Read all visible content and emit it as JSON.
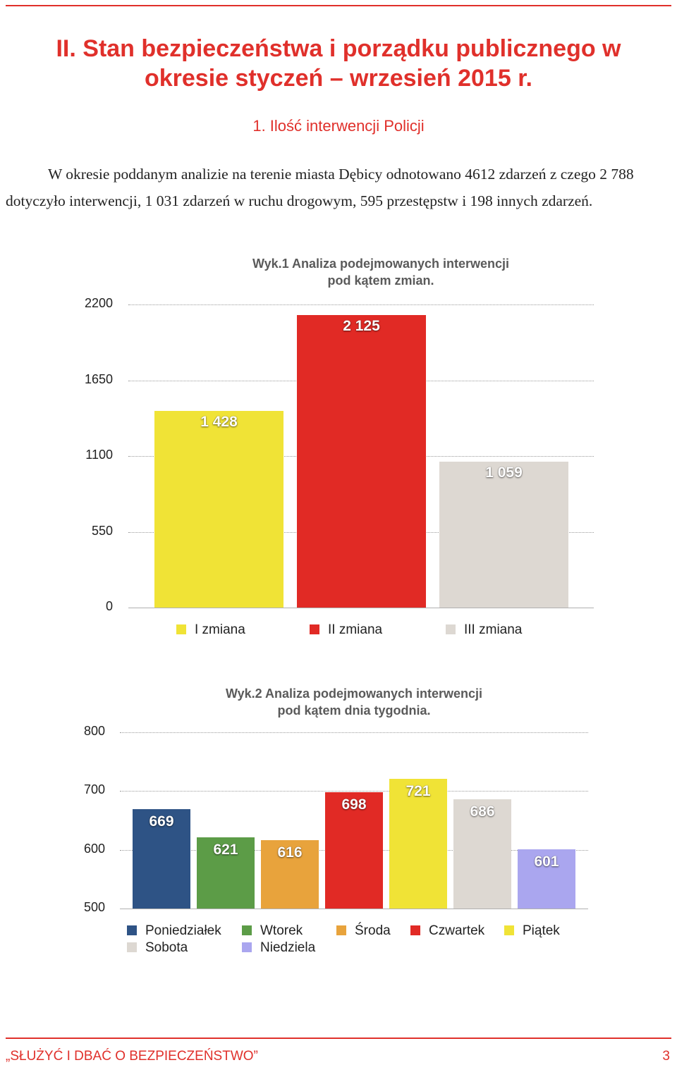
{
  "heading": {
    "line1": "II. Stan bezpieczeństwa i porządku publicznego w",
    "line2": "okresie styczeń – wrzesień 2015 r."
  },
  "subheading": "1. Ilość interwencji Policji",
  "intro": "W okresie poddanym analizie na terenie miasta Dębicy odnotowano 4612 zdarzeń z czego 2 788 dotyczyło interwencji, 1 031 zdarzeń w ruchu drogowym, 595 przestępstw i 198 innych zdarzeń.",
  "chart_data": [
    {
      "type": "bar",
      "title_line1": "Wyk.1 Analiza podejmowanych interwencji",
      "title_line2": "pod kątem zmian.",
      "categories": [
        "I zmiana",
        "II zmiana",
        "III zmiana"
      ],
      "values": [
        1428,
        2125,
        1059
      ],
      "value_labels": [
        "1 428",
        "2 125",
        "1 059"
      ],
      "colors": [
        "#f0e336",
        "#e12a25",
        "#ddd8d2"
      ],
      "yticks": [
        "2200",
        "1650",
        "1100",
        "550",
        "0"
      ],
      "ylim": [
        0,
        2200
      ],
      "grid": true,
      "legend": "bottom"
    },
    {
      "type": "bar",
      "title_line1": "Wyk.2 Analiza podejmowanych interwencji",
      "title_line2": "pod kątem dnia tygodnia.",
      "categories": [
        "Poniedziałek",
        "Wtorek",
        "Środa",
        "Czwartek",
        "Piątek",
        "Sobota",
        "Niedziela"
      ],
      "values": [
        669,
        621,
        616,
        698,
        721,
        686,
        601
      ],
      "value_labels": [
        "669",
        "621",
        "616",
        "698",
        "721",
        "686",
        "601"
      ],
      "colors": [
        "#2e5385",
        "#5c9c47",
        "#e8a33c",
        "#e12a25",
        "#f0e336",
        "#ddd8d2",
        "#aaa6ef"
      ],
      "yticks": [
        "800",
        "700",
        "600",
        "500"
      ],
      "ylim": [
        500,
        800
      ],
      "grid": true,
      "legend": "bottom"
    }
  ],
  "footer": {
    "text": "„SŁUŻYĆ I DBAĆ O BEZPIECZEŃSTWO”",
    "page": "3"
  }
}
